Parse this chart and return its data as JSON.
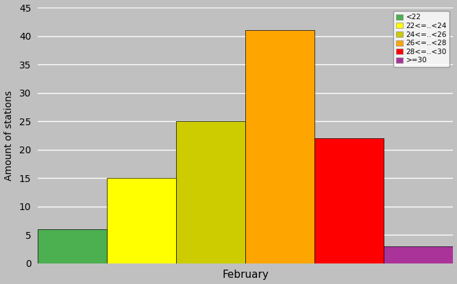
{
  "bars": [
    {
      "label": "<22",
      "value": 6,
      "color": "#4CAF50"
    },
    {
      "label": "22<=..<24",
      "value": 15,
      "color": "#FFFF00"
    },
    {
      "label": "24<=..<26",
      "value": 25,
      "color": "#CCCC00"
    },
    {
      "label": "26<=..<28",
      "value": 41,
      "color": "#FFA500"
    },
    {
      "label": "28<=..<30",
      "value": 22,
      "color": "#FF0000"
    },
    {
      "label": ">=30",
      "value": 3,
      "color": "#AA3399"
    }
  ],
  "ylabel": "Amount of stations",
  "xlabel": "February",
  "ylim": [
    0,
    45
  ],
  "yticks": [
    0,
    5,
    10,
    15,
    20,
    25,
    30,
    35,
    40,
    45
  ],
  "bg_color": "#C0C0C0",
  "plot_bg_color": "#C0C0C0",
  "legend_bg_color": "#FFFFFF",
  "figsize": [
    6.67,
    4.15
  ],
  "dpi": 100
}
